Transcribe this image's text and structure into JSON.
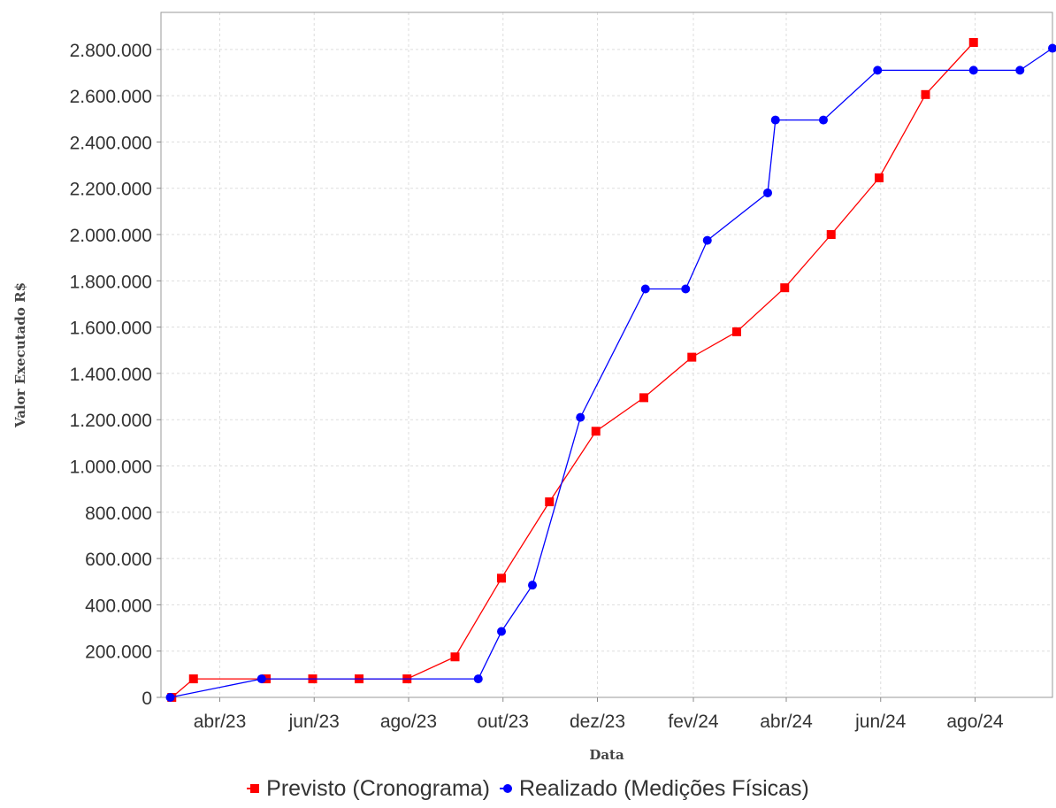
{
  "chart_data": {
    "type": "line",
    "title": "",
    "xlabel": "Data",
    "ylabel": "Valor Executado R$",
    "grid": true,
    "legend_position": "bottom",
    "x_range": [
      "2023-02-22",
      "2024-09-20"
    ],
    "ylim": [
      0,
      2960000
    ],
    "y_ticks": [
      {
        "value": 0,
        "label": "0"
      },
      {
        "value": 200000,
        "label": "200.000"
      },
      {
        "value": 400000,
        "label": "400.000"
      },
      {
        "value": 600000,
        "label": "600.000"
      },
      {
        "value": 800000,
        "label": "800.000"
      },
      {
        "value": 1000000,
        "label": "1.000.000"
      },
      {
        "value": 1200000,
        "label": "1.200.000"
      },
      {
        "value": 1400000,
        "label": "1.400.000"
      },
      {
        "value": 1600000,
        "label": "1.600.000"
      },
      {
        "value": 1800000,
        "label": "1.800.000"
      },
      {
        "value": 2000000,
        "label": "2.000.000"
      },
      {
        "value": 2200000,
        "label": "2.200.000"
      },
      {
        "value": 2400000,
        "label": "2.400.000"
      },
      {
        "value": 2600000,
        "label": "2.600.000"
      },
      {
        "value": 2800000,
        "label": "2.800.000"
      }
    ],
    "x_ticks": [
      {
        "date": "2023-04-01",
        "label": "abr/23"
      },
      {
        "date": "2023-06-01",
        "label": "jun/23"
      },
      {
        "date": "2023-08-01",
        "label": "ago/23"
      },
      {
        "date": "2023-10-01",
        "label": "out/23"
      },
      {
        "date": "2023-12-01",
        "label": "dez/23"
      },
      {
        "date": "2024-02-01",
        "label": "fev/24"
      },
      {
        "date": "2024-04-01",
        "label": "abr/24"
      },
      {
        "date": "2024-06-01",
        "label": "jun/24"
      },
      {
        "date": "2024-08-01",
        "label": "ago/24"
      }
    ],
    "series": [
      {
        "name": "Previsto (Cronograma)",
        "color": "#ff0000",
        "marker": "square",
        "points": [
          {
            "x": "2023-03-01",
            "y": 0
          },
          {
            "x": "2023-03-15",
            "y": 80000
          },
          {
            "x": "2023-05-01",
            "y": 80000
          },
          {
            "x": "2023-05-31",
            "y": 80000
          },
          {
            "x": "2023-06-30",
            "y": 80000
          },
          {
            "x": "2023-07-31",
            "y": 80000
          },
          {
            "x": "2023-08-31",
            "y": 175000
          },
          {
            "x": "2023-09-30",
            "y": 515000
          },
          {
            "x": "2023-10-31",
            "y": 845000
          },
          {
            "x": "2023-11-30",
            "y": 1150000
          },
          {
            "x": "2023-12-31",
            "y": 1295000
          },
          {
            "x": "2024-01-31",
            "y": 1470000
          },
          {
            "x": "2024-02-29",
            "y": 1580000
          },
          {
            "x": "2024-03-31",
            "y": 1770000
          },
          {
            "x": "2024-04-30",
            "y": 2000000
          },
          {
            "x": "2024-05-31",
            "y": 2245000
          },
          {
            "x": "2024-06-30",
            "y": 2605000
          },
          {
            "x": "2024-07-31",
            "y": 2830000
          }
        ]
      },
      {
        "name": "Realizado (Medições Físicas)",
        "color": "#0000ff",
        "marker": "circle",
        "points": [
          {
            "x": "2023-02-28",
            "y": 0
          },
          {
            "x": "2023-04-28",
            "y": 80000
          },
          {
            "x": "2023-09-15",
            "y": 80000
          },
          {
            "x": "2023-09-30",
            "y": 285000
          },
          {
            "x": "2023-10-20",
            "y": 485000
          },
          {
            "x": "2023-11-20",
            "y": 1210000
          },
          {
            "x": "2024-01-01",
            "y": 1765000
          },
          {
            "x": "2024-01-27",
            "y": 1765000
          },
          {
            "x": "2024-02-10",
            "y": 1975000
          },
          {
            "x": "2024-03-20",
            "y": 2180000
          },
          {
            "x": "2024-03-25",
            "y": 2495000
          },
          {
            "x": "2024-04-25",
            "y": 2495000
          },
          {
            "x": "2024-05-30",
            "y": 2710000
          },
          {
            "x": "2024-07-31",
            "y": 2710000
          },
          {
            "x": "2024-08-30",
            "y": 2710000
          },
          {
            "x": "2024-09-20",
            "y": 2805000
          }
        ]
      }
    ]
  }
}
